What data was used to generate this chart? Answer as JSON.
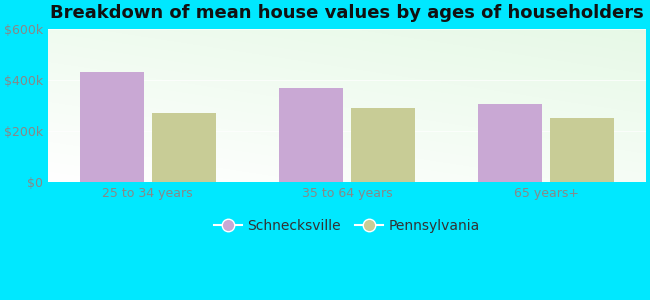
{
  "title": "Breakdown of mean house values by ages of householders",
  "categories": [
    "25 to 34 years",
    "35 to 64 years",
    "65 years+"
  ],
  "schnecksville_values": [
    430000,
    370000,
    305000
  ],
  "pennsylvania_values": [
    270000,
    290000,
    250000
  ],
  "schnecksville_color": "#c9a8d4",
  "pennsylvania_color": "#c8cc96",
  "ylim": [
    0,
    600000
  ],
  "yticks": [
    0,
    200000,
    400000,
    600000
  ],
  "ytick_labels": [
    "$0",
    "$200k",
    "$400k",
    "$600k"
  ],
  "bar_width": 0.32,
  "background_outer": "#00e8ff",
  "legend_schnecksville": "Schnecksville",
  "legend_pennsylvania": "Pennsylvania",
  "title_fontsize": 13,
  "tick_fontsize": 9,
  "legend_fontsize": 10,
  "tick_color": "#888888",
  "title_color": "#111111"
}
